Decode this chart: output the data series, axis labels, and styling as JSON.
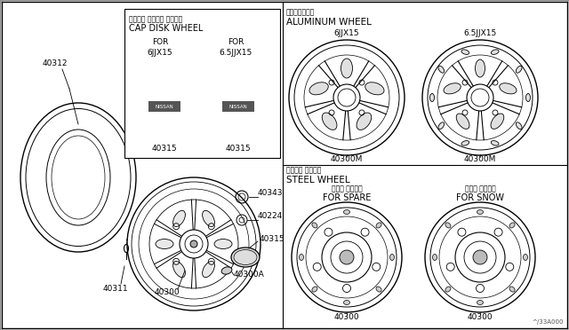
{
  "bg_color": "#ffffff",
  "line_color": "#000000",
  "title_text": "^/33A000",
  "cap_disk": {
    "title_jp": "ディスク ホイール キャップ",
    "title_en": "CAP DISK WHEEL",
    "for1": "FOR",
    "size1": "6JJX15",
    "for2": "FOR",
    "size2": "6.5JJX15",
    "part1": "40315",
    "part2": "40315"
  },
  "aluminum": {
    "title_jp": "アルミホイール",
    "title_en": "ALUMINUM WHEEL",
    "size1": "6JJX15",
    "size2": "6.5JJX15",
    "part1": "40300M",
    "part2": "40300M"
  },
  "steel": {
    "title_jp": "スチール ホイール",
    "title_en": "STEEL WHEEL",
    "sub1_jp": "スペア タイヤ用",
    "sub1_en": "FOR SPARE",
    "sub2_jp": "スノー タイヤ用",
    "sub2_en": "FOR SNOW",
    "part1": "40300",
    "part2": "40300"
  },
  "left_parts": {
    "tire": "40312",
    "wheel": "40300",
    "bolt": "40311",
    "nut": "40343",
    "washer": "40224",
    "cap": "40315",
    "adapter": "40300A"
  }
}
